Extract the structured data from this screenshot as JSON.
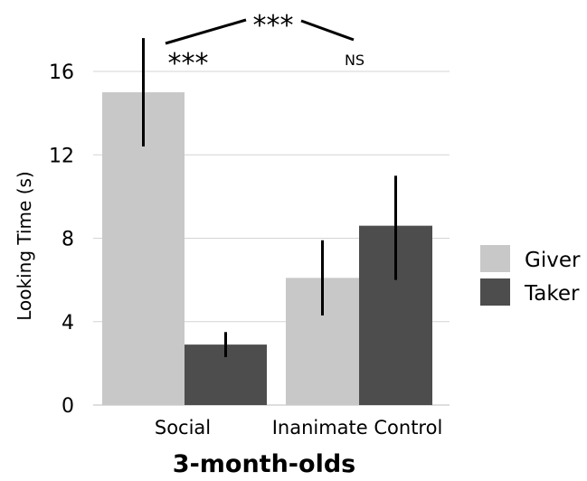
{
  "chart_data": {
    "type": "bar",
    "title": "3-month-olds",
    "xlabel": "",
    "ylabel": "Looking Time (s)",
    "ylim": [
      0,
      16
    ],
    "yticks": [
      0,
      4,
      8,
      12,
      16
    ],
    "grid": true,
    "legend_position": "right",
    "categories": [
      "Social",
      "Inanimate Control"
    ],
    "series": [
      {
        "name": "Giver",
        "color": "#c8c8c8",
        "values": [
          15.0,
          6.1
        ],
        "error_low": [
          12.4,
          4.3
        ],
        "error_high": [
          17.6,
          7.9
        ]
      },
      {
        "name": "Taker",
        "color": "#4d4d4d",
        "values": [
          2.9,
          8.6
        ],
        "error_low": [
          2.3,
          6.0
        ],
        "error_high": [
          3.5,
          11.0
        ]
      }
    ],
    "annotations": {
      "social_significance": "***",
      "inanimate_significance": "NS",
      "interaction_significance": "***"
    }
  }
}
